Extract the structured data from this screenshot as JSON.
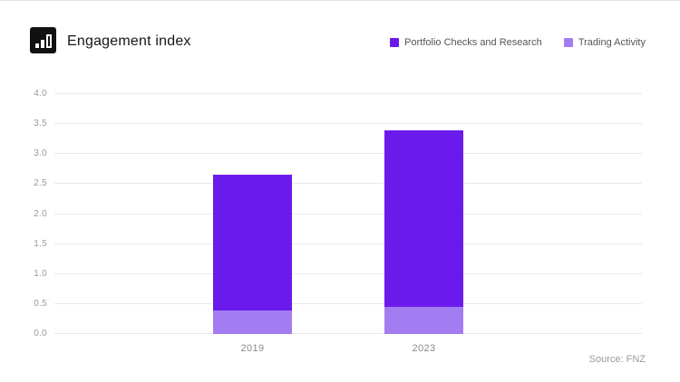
{
  "header": {
    "title": "Engagement index",
    "logo_icon": "bar-chart-icon"
  },
  "legend": [
    {
      "label": "Portfolio Checks and Research",
      "color": "#6a1beb"
    },
    {
      "label": "Trading Activity",
      "color": "#a47cf1"
    }
  ],
  "source_label": "Source: FNZ",
  "chart_data": {
    "type": "bar",
    "stacked": true,
    "title": "Engagement index",
    "categories": [
      "2019",
      "2023"
    ],
    "series": [
      {
        "name": "Trading Activity",
        "color": "#a47cf1",
        "values": [
          0.4,
          0.45
        ]
      },
      {
        "name": "Portfolio Checks and Research",
        "color": "#6a1beb",
        "values": [
          2.25,
          2.95
        ]
      }
    ],
    "totals": [
      2.65,
      3.4
    ],
    "xlabel": "",
    "ylabel": "",
    "ylim": [
      0,
      4.0
    ],
    "ytick_step": 0.5,
    "ytick_labels": [
      "0.0",
      "0.5",
      "1.0",
      "1.5",
      "2.0",
      "2.5",
      "3.0",
      "3.5",
      "4.0"
    ],
    "grid": true,
    "legend_position": "top-right"
  }
}
